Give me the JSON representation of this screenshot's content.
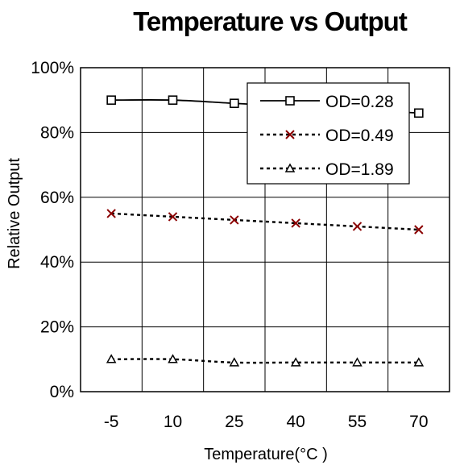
{
  "chart_data": {
    "type": "line",
    "title": "Temperature vs Output",
    "xlabel": "Temperature(°C )",
    "ylabel": "Relative Output",
    "categories": [
      "-5",
      "10",
      "25",
      "40",
      "55",
      "70"
    ],
    "y_ticks": [
      "0%",
      "20%",
      "40%",
      "60%",
      "80%",
      "100%"
    ],
    "ylim": [
      0,
      100
    ],
    "grid": true,
    "legend_position": "top-right",
    "series": [
      {
        "name": "OD=0.28",
        "values": [
          90,
          90,
          89,
          88,
          87,
          86
        ],
        "marker": "square",
        "line": "solid",
        "color": "#000000"
      },
      {
        "name": "OD=0.49",
        "values": [
          55,
          54,
          53,
          52,
          51,
          50
        ],
        "marker": "x",
        "line": "dotted",
        "color": "#8b0000"
      },
      {
        "name": "OD=1.89",
        "values": [
          10,
          10,
          9,
          9,
          9,
          9
        ],
        "marker": "triangle",
        "line": "dotted",
        "color": "#000000"
      }
    ]
  }
}
